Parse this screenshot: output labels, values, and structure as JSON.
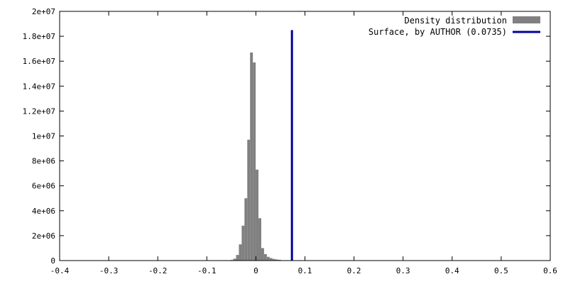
{
  "chart_data": {
    "type": "bar",
    "title": "",
    "xlabel": "",
    "ylabel": "",
    "xlim": [
      -0.4,
      0.6
    ],
    "ylim": [
      0,
      20000000
    ],
    "x_ticks": [
      -0.4,
      -0.3,
      -0.2,
      -0.1,
      0,
      0.1,
      0.2,
      0.3,
      0.4,
      0.5,
      0.6
    ],
    "x_tick_labels": [
      "-0.4",
      "-0.3",
      "-0.2",
      "-0.1",
      "0",
      "0.1",
      "0.2",
      "0.3",
      "0.4",
      "0.5",
      "0.6"
    ],
    "y_ticks": [
      0,
      2000000,
      4000000,
      6000000,
      8000000,
      10000000,
      12000000,
      14000000,
      16000000,
      18000000,
      20000000
    ],
    "y_tick_labels": [
      "0",
      "2e+06",
      "4e+06",
      "6e+06",
      "8e+06",
      "1e+07",
      "1.2e+07",
      "1.4e+07",
      "1.6e+07",
      "1.8e+07",
      "2e+07"
    ],
    "grid": false,
    "legend_position": "top-right",
    "bin_width": 0.0057,
    "series": [
      {
        "name": "Density distribution",
        "color": "#808080",
        "x": [
          -0.0489,
          -0.0432,
          -0.0375,
          -0.0318,
          -0.0261,
          -0.0204,
          -0.0147,
          -0.009,
          -0.0033,
          0.0024,
          0.0081,
          0.0138,
          0.0195,
          0.0252,
          0.0309,
          0.0366,
          0.0423,
          0.048
        ],
        "values": [
          50000,
          150000,
          450000,
          1300000,
          2800000,
          5000000,
          9700000,
          16700000,
          15900000,
          7300000,
          3400000,
          1000000,
          520000,
          300000,
          200000,
          130000,
          90000,
          60000
        ]
      },
      {
        "name": "Surface, by AUTHOR (0.0735)",
        "color": "#0000a0",
        "x": 0.0735,
        "y_max": 18500000
      }
    ]
  }
}
